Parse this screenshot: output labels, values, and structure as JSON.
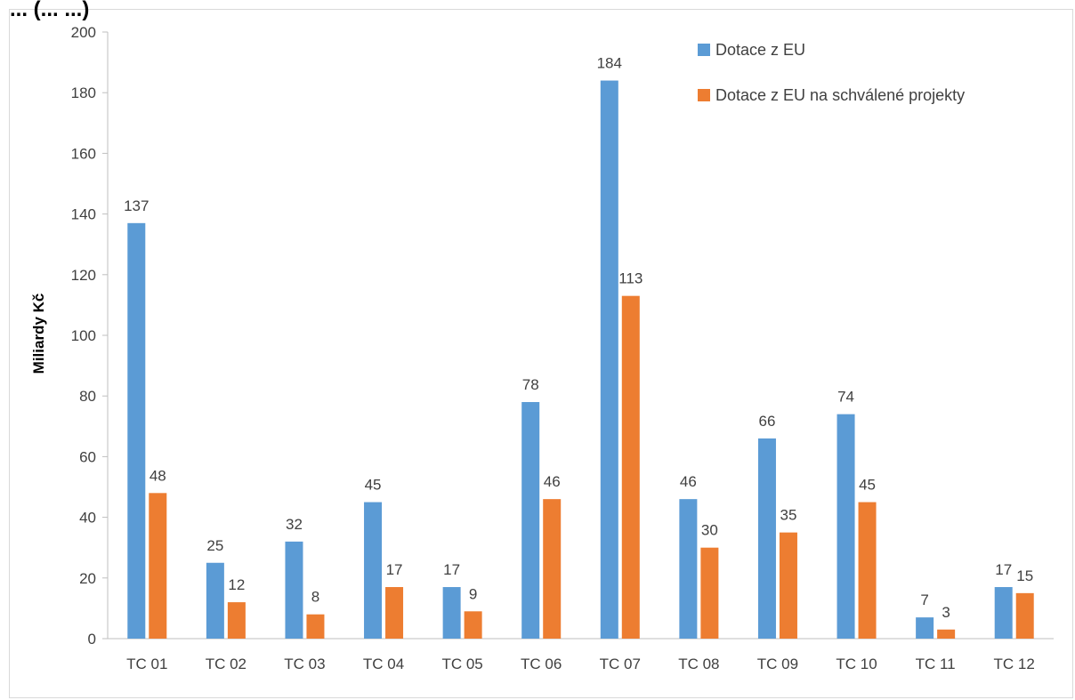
{
  "chart_data": {
    "type": "bar",
    "title": "",
    "title_fragment": "... (... ...)",
    "ylabel": "Miliardy Kč",
    "xlabel": "",
    "ylim": [
      0,
      200
    ],
    "yticks": [
      0,
      20,
      40,
      60,
      80,
      100,
      120,
      140,
      160,
      180,
      200
    ],
    "grid": false,
    "legend_position": "top-right",
    "categories": [
      "TC 01",
      "TC 02",
      "TC 03",
      "TC 04",
      "TC 05",
      "TC 06",
      "TC 07",
      "TC 08",
      "TC 09",
      "TC 10",
      "TC 11",
      "TC 12"
    ],
    "series": [
      {
        "name": "Dotace z EU",
        "color": "#5b9bd5",
        "values": [
          137,
          25,
          32,
          45,
          17,
          78,
          184,
          46,
          66,
          74,
          7,
          17
        ],
        "labels": [
          "137",
          "25",
          "32",
          "45",
          "17",
          "78",
          "184",
          "46",
          "66",
          "74",
          "7",
          "17"
        ]
      },
      {
        "name": "Dotace z EU na schválené projekty",
        "color": "#ed7d31",
        "values": [
          48,
          12,
          8,
          17,
          9,
          46,
          113,
          30,
          35,
          45,
          3,
          15
        ],
        "labels": [
          "48",
          "12",
          "8",
          "17",
          "9",
          "46",
          "113",
          "30",
          "35",
          "45",
          "3",
          "15"
        ]
      }
    ]
  }
}
